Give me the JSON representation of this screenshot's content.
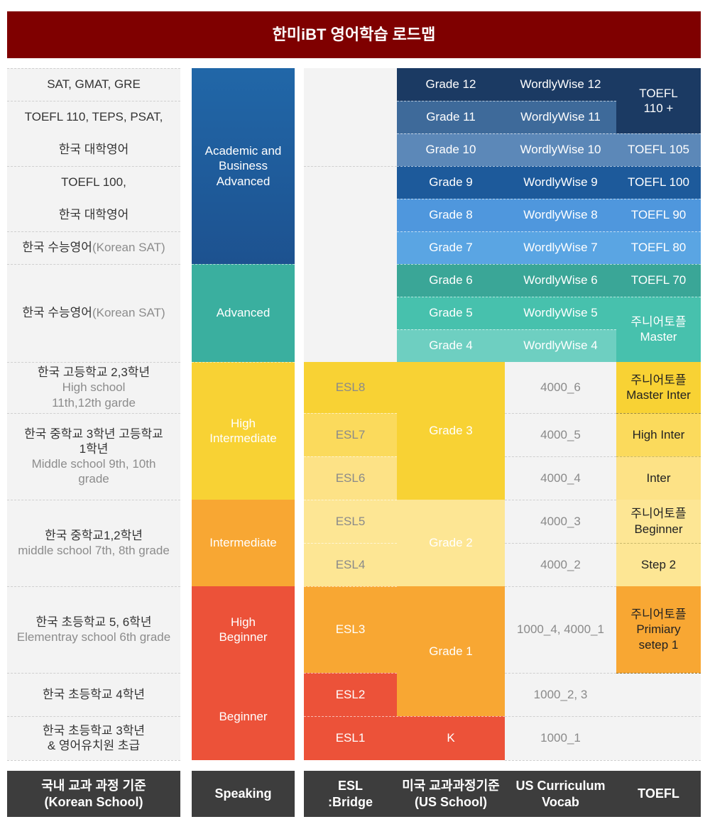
{
  "title": "한미iBT 영어학습 로드맵",
  "korean_school": {
    "r1": "SAT, GMAT, GRE",
    "r2a": "TOEFL 110, TEPS,  PSAT,",
    "r2b": "한국 대학영어",
    "r3a": "TOEFL 100,",
    "r3b": "한국 대학영어",
    "r4_kr": "한국 수능영어",
    "r4_en": " (Korean SAT)",
    "r5_kr": "한국 수능영어",
    "r5_en": " (Korean SAT)",
    "r6_kr": "한국 고등학교 2,3학년",
    "r6_en1": "High school",
    "r6_en2": "11th,12th garde",
    "r7_kr1": "한국 중학교 3학년  고등학교",
    "r7_kr2": "1학년",
    "r7_en1": "Middle school 9th, 10th",
    "r7_en2": "grade",
    "r8_kr": "한국 중학교1,2학년",
    "r8_en": "middle school 7th, 8th grade",
    "r9_kr": "한국 초등학교 5, 6학년",
    "r9_en": "Elementray school 6th grade",
    "r10": "한국 초등학교 4학년",
    "r11a": "한국 초등학교 3학년",
    "r11b": "& 영어유치원 초급"
  },
  "speaking": {
    "academic": [
      "Academic and",
      "Business",
      "Advanced"
    ],
    "advanced": "Advanced",
    "high_intermediate": [
      "High",
      "Intermediate"
    ],
    "intermediate": "Intermediate",
    "high_beginner": [
      "High",
      "Beginner"
    ],
    "beginner": "Beginner"
  },
  "esl": [
    "ESL8",
    "ESL7",
    "ESL6",
    "ESL5",
    "ESL4",
    "ESL3",
    "ESL2",
    "ESL1"
  ],
  "us_school": {
    "grades": [
      "Grade  12",
      "Grade  11",
      "Grade  10",
      "Grade   9",
      "Grade   8",
      "Grade   7",
      "Grade   6",
      "Grade  5",
      "Grade  4"
    ],
    "grade3": "Grade   3",
    "grade2": "Grade   2",
    "grade1": "Grade  1",
    "k": "K"
  },
  "vocab": {
    "wordlywise": [
      "WordlyWise 12",
      "WordlyWise 11",
      "WordlyWise 10",
      "WordlyWise 9",
      "WordlyWise 8",
      "WordlyWise 7",
      "WordlyWise 6",
      "WordlyWise 5",
      "WordlyWise 4"
    ],
    "v4000_6": "4000_6",
    "v4000_5": "4000_5",
    "v4000_4": "4000_4",
    "v4000_3": "4000_3",
    "v4000_2": "4000_2",
    "v1000_4": "1000_4,  4000_1",
    "v1000_2": "1000_2, 3",
    "v1000_1": "1000_1"
  },
  "toefl": {
    "t110": [
      "TOEFL",
      "110 +"
    ],
    "t105": "TOEFL 105",
    "t100": "TOEFL 100",
    "t90": "TOEFL 90",
    "t80": "TOEFL 80",
    "t70": "TOEFL 70",
    "jr_master": [
      "주니어토플",
      "Master"
    ],
    "jr_master_inter": [
      "주니어토플",
      "Master Inter"
    ],
    "high_inter": "High Inter",
    "inter": "Inter",
    "jr_beginner": [
      "주니어토플",
      "Beginner"
    ],
    "step2": "Step 2",
    "jr_primary": [
      "주니어토플",
      "Primiary",
      "setep 1"
    ]
  },
  "footer": {
    "korean_school": [
      "국내 교과 과정 기준",
      "(Korean School)"
    ],
    "speaking": "Speaking",
    "esl": [
      "ESL",
      ":Bridge"
    ],
    "us_school": [
      "미국 교과과정기준",
      "(US School)"
    ],
    "vocab": [
      "US Curriculum",
      "Vocab"
    ],
    "toefl": "TOEFL"
  },
  "colors": {
    "title_bg": "#7f0000",
    "navy": "#1b3a63",
    "blue": "#1d5a9b",
    "light_blue": "#5aa5e3",
    "teal": "#3aaf9f",
    "yellow": "#f8d234",
    "light_yellow": "#fde694",
    "orange": "#f8a733",
    "red": "#ec5239",
    "footer_bg": "#3d3d3d"
  }
}
